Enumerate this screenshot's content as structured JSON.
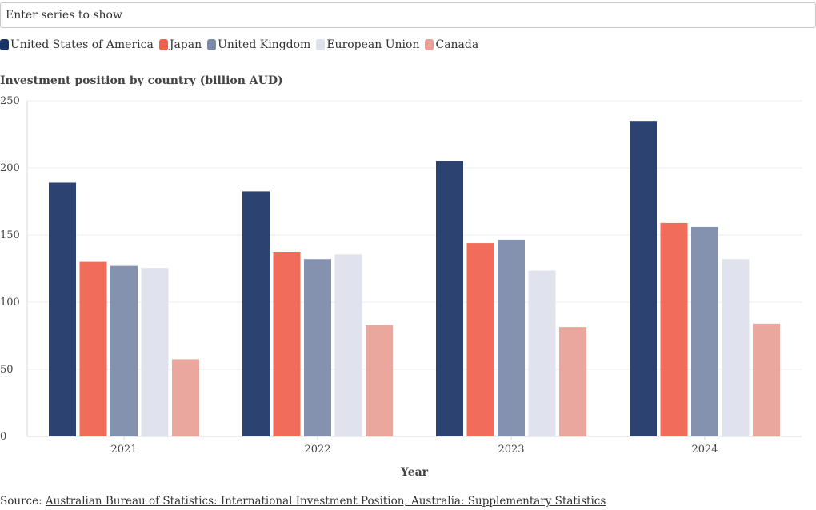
{
  "search": {
    "placeholder": "Enter series to show"
  },
  "legend": [
    {
      "label": "United States of America",
      "color": "#1a3366"
    },
    {
      "label": "Japan",
      "color": "#f0604d"
    },
    {
      "label": "United Kingdom",
      "color": "#7a89a8"
    },
    {
      "label": "European Union",
      "color": "#dde1ec"
    },
    {
      "label": "Canada",
      "color": "#e8a096"
    }
  ],
  "chart_data": {
    "type": "bar",
    "title": "Investment position by country (billion AUD)",
    "xlabel": "Year",
    "ylabel": "",
    "ylim": [
      0,
      250
    ],
    "yticks": [
      0,
      50,
      100,
      150,
      200,
      250
    ],
    "grid": true,
    "categories": [
      "2021",
      "2022",
      "2023",
      "2024"
    ],
    "series": [
      {
        "name": "United States of America",
        "color": "#1a3366",
        "values": [
          189,
          182.5,
          205,
          235
        ]
      },
      {
        "name": "Japan",
        "color": "#f0604d",
        "values": [
          130,
          137.5,
          144,
          159
        ]
      },
      {
        "name": "United Kingdom",
        "color": "#7a89a8",
        "values": [
          127,
          132,
          146.5,
          156
        ]
      },
      {
        "name": "European Union",
        "color": "#dde1ec",
        "values": [
          125.5,
          135.5,
          123.5,
          132
        ]
      },
      {
        "name": "Canada",
        "color": "#e8a096",
        "values": [
          57.5,
          83,
          81.5,
          84
        ]
      }
    ]
  },
  "source": {
    "prefix": "Source: ",
    "link_text": "Australian Bureau of Statistics: International Investment Position, Australia: Supplementary Statistics"
  }
}
